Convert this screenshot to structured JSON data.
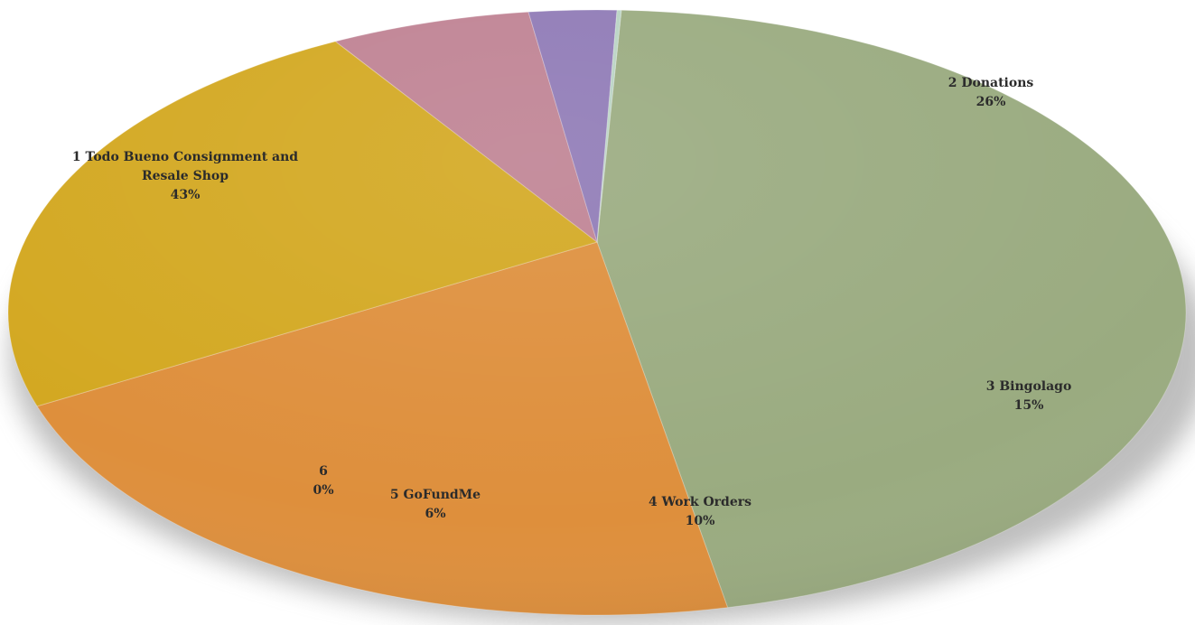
{
  "chart_data": {
    "type": "pie",
    "title": "",
    "slices": [
      {
        "num": "1",
        "label": "Todo Bueno Consignment and Resale Shop",
        "label_lines": [
          "1 Todo Bueno Consignment and",
          "Resale Shop"
        ],
        "value": 43,
        "pct": "43%",
        "color": "#9aab80"
      },
      {
        "num": "2",
        "label": "Donations",
        "label_lines": [
          "2 Donations"
        ],
        "value": 26,
        "pct": "26%",
        "color": "#de8f3c"
      },
      {
        "num": "3",
        "label": "Bingolago",
        "label_lines": [
          "3 Bingolago"
        ],
        "value": 15,
        "pct": "15%",
        "color": "#d3a821"
      },
      {
        "num": "4",
        "label": "Work Orders",
        "label_lines": [
          "4 Work Orders"
        ],
        "value": 10,
        "pct": "10%",
        "color": "#bf8293"
      },
      {
        "num": "5",
        "label": "GoFundMe",
        "label_lines": [
          "5 GoFundMe"
        ],
        "value": 6,
        "pct": "6%",
        "color": "#8f7ab6"
      },
      {
        "num": "6",
        "label": "",
        "label_lines": [
          "6"
        ],
        "value": 0.3,
        "pct": "0%",
        "color": "#b9d3c3"
      }
    ],
    "legend": "none"
  }
}
